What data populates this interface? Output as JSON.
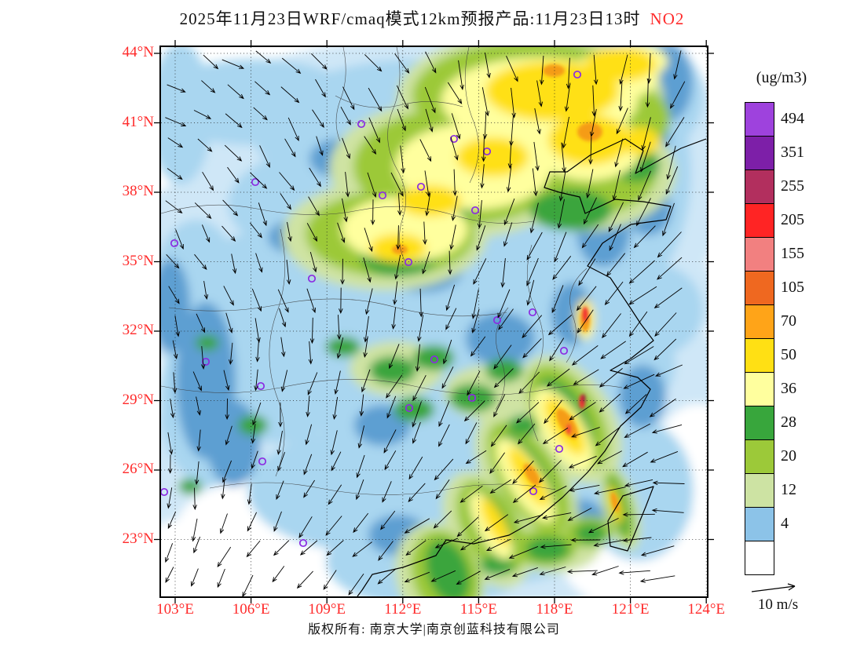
{
  "title": {
    "main": "2025年11月23日WRF/cmaq模式12km预报产品:11月23日13时",
    "species": "NO2"
  },
  "axes": {
    "lat_labels": [
      "44°N",
      "41°N",
      "38°N",
      "35°N",
      "32°N",
      "29°N",
      "26°N",
      "23°N"
    ],
    "lon_labels": [
      "103°E",
      "106°E",
      "109°E",
      "112°E",
      "115°E",
      "118°E",
      "121°E",
      "124°E"
    ]
  },
  "colorbar": {
    "unit": "(ug/m3)",
    "labels": [
      "494",
      "351",
      "255",
      "205",
      "155",
      "105",
      "70",
      "50",
      "36",
      "28",
      "20",
      "12",
      "4"
    ],
    "colors": [
      "#9e42dd",
      "#7d1fa8",
      "#b22f5e",
      "#ff2424",
      "#f28080",
      "#ef6820",
      "#ffa418",
      "#ffe014",
      "#ffff9e",
      "#38a63c",
      "#9cc939",
      "#cde3a3",
      "#8cc3e8",
      "#ffffff"
    ]
  },
  "wind_ref": {
    "label": "10 m/s"
  },
  "footer": "版权所有: 南京大学|南京创蓝科技有限公司",
  "colors": {
    "axis_label": "#ff2a2a",
    "species_label": "#ff2a2a",
    "coastline": "#000000",
    "station_marker": "#8b2be2"
  },
  "chart_data": {
    "type": "heatmap",
    "variable": "NO2 surface concentration forecast",
    "unit": "ug/m3",
    "scale_levels": [
      4,
      12,
      20,
      28,
      36,
      50,
      70,
      105,
      155,
      205,
      255,
      351,
      494
    ],
    "lat_ticks_degN": [
      44,
      41,
      38,
      35,
      32,
      29,
      26,
      23
    ],
    "lon_ticks_degE": [
      103,
      106,
      109,
      112,
      115,
      118,
      121,
      124
    ],
    "wind_reference_speed": "10 m/s"
  }
}
